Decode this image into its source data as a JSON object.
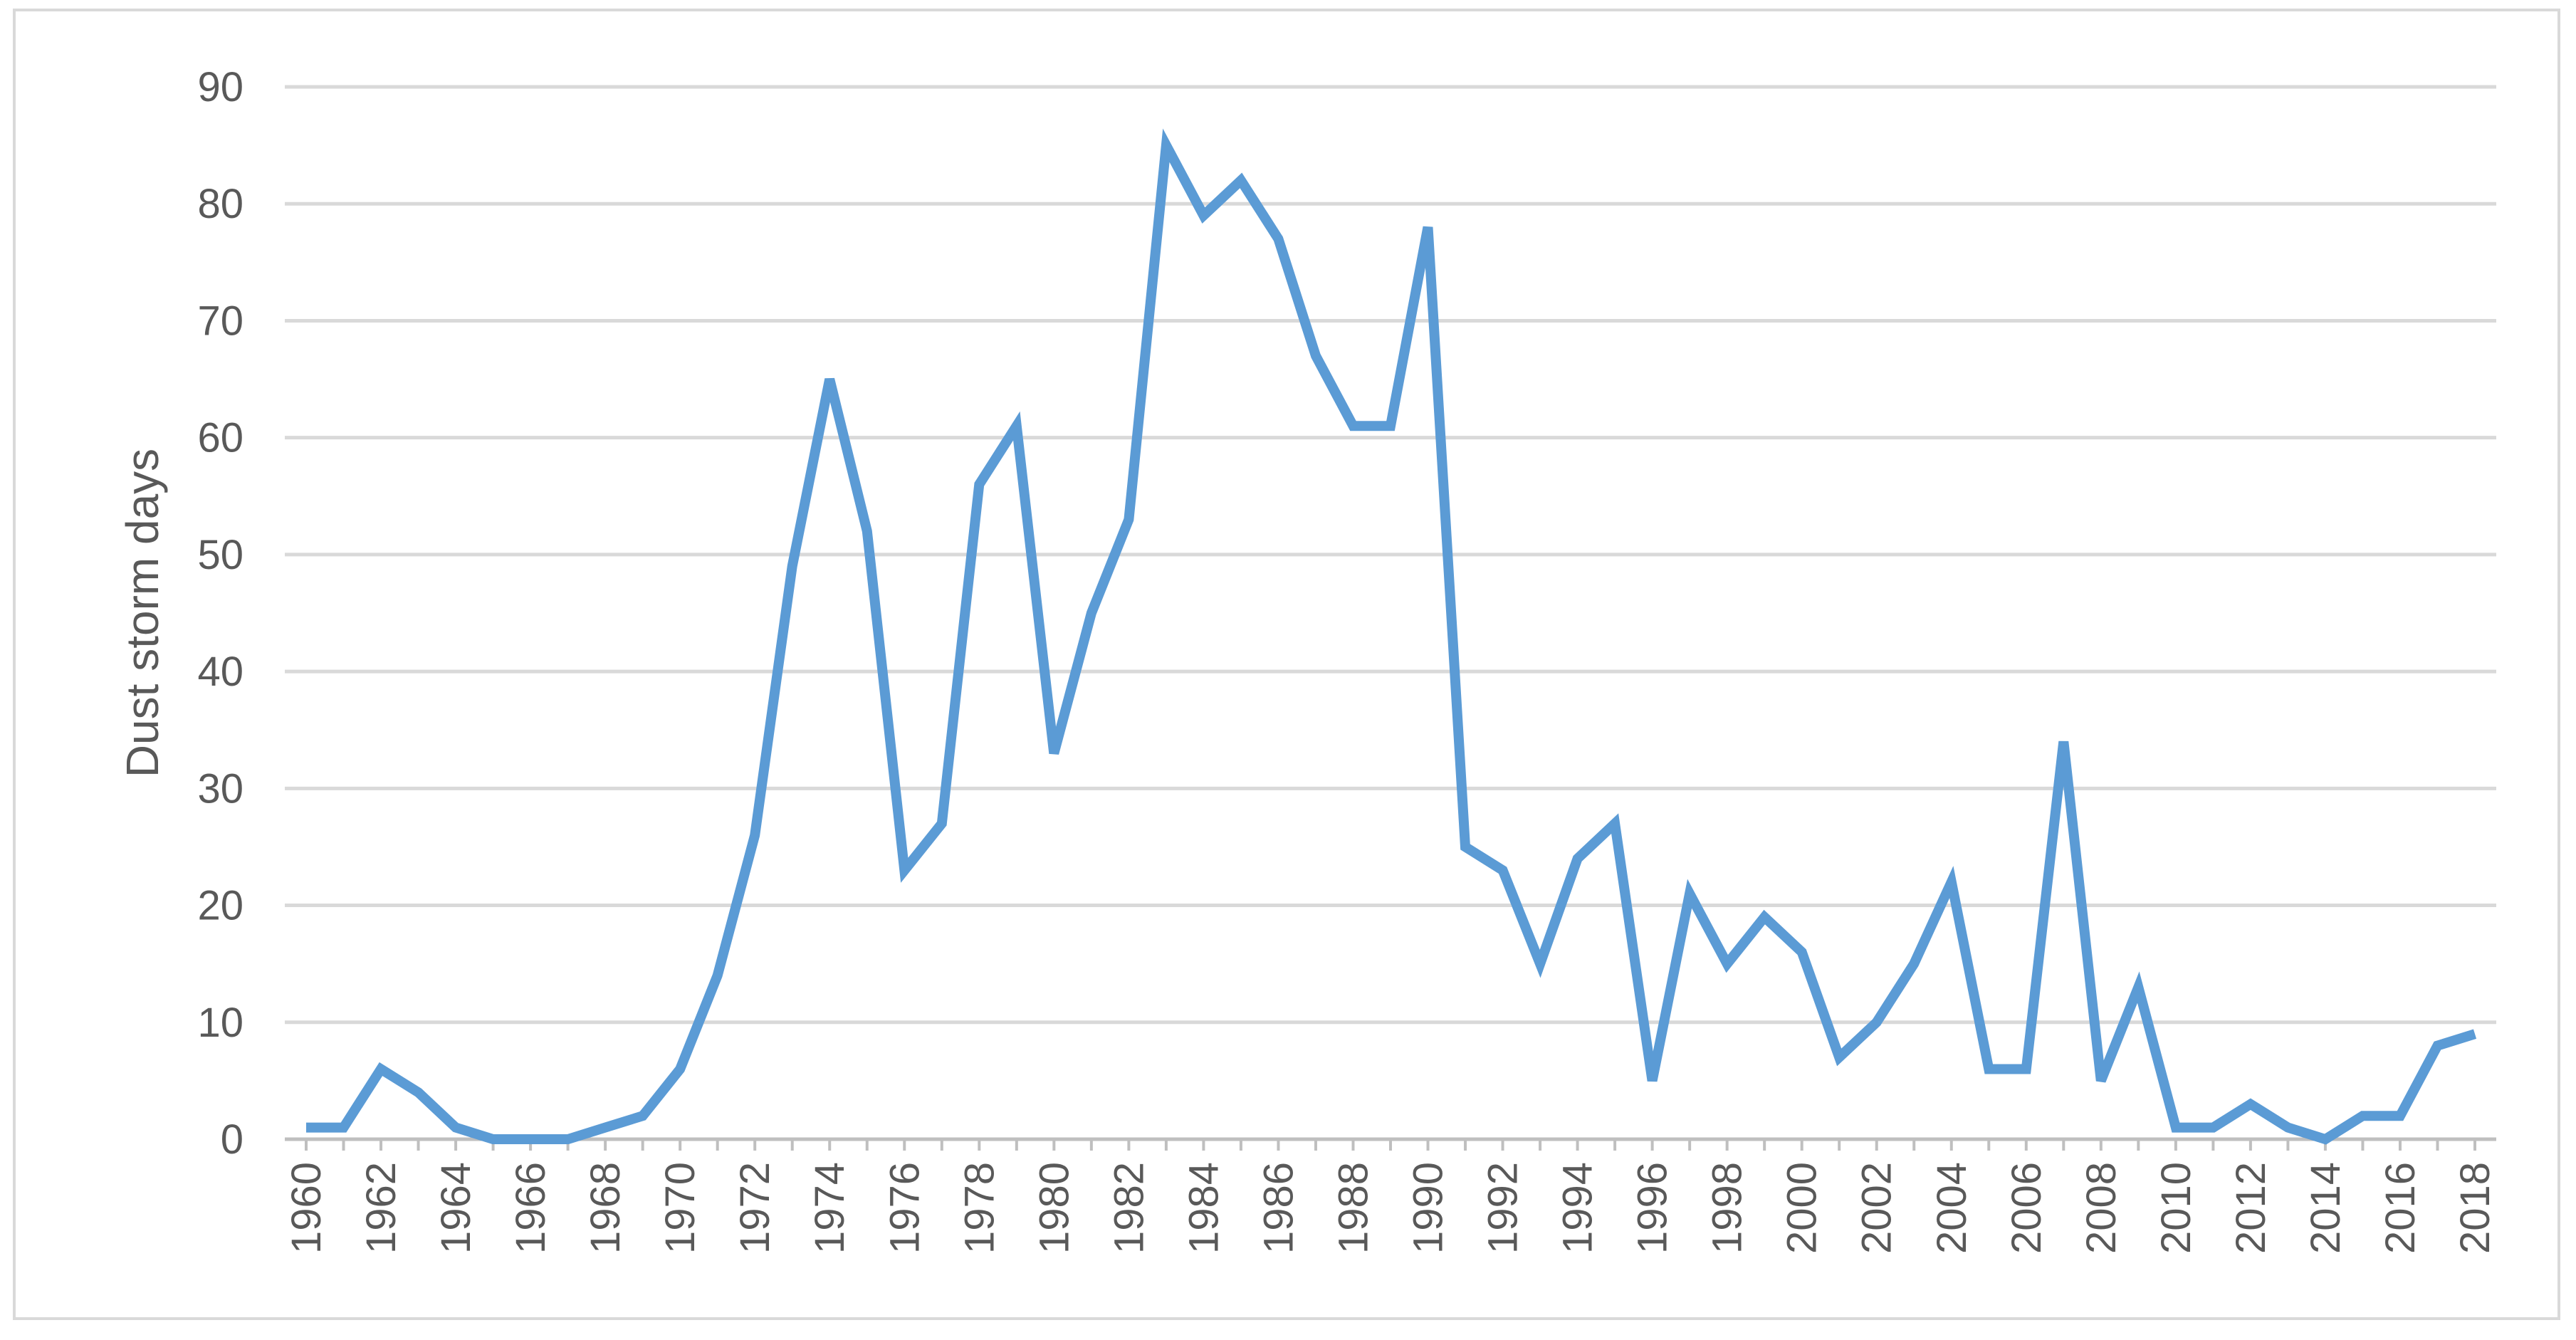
{
  "chart_data": {
    "type": "line",
    "title": "",
    "xlabel": "",
    "ylabel": "Dust storm days",
    "ylim": [
      0,
      90
    ],
    "yticks": [
      0,
      10,
      20,
      30,
      40,
      50,
      60,
      70,
      80,
      90
    ],
    "xlim": [
      1960,
      2018
    ],
    "xtick_labels": [
      "1960",
      "1962",
      "1964",
      "1966",
      "1968",
      "1970",
      "1972",
      "1974",
      "1976",
      "1978",
      "1980",
      "1982",
      "1984",
      "1986",
      "1988",
      "1990",
      "1992",
      "1994",
      "1996",
      "1998",
      "2000",
      "2002",
      "2004",
      "2006",
      "2008",
      "2010",
      "2012",
      "2014",
      "2016",
      "2018"
    ],
    "grid": true,
    "legend": "none",
    "line_color": "#5B9BD5",
    "grid_color": "#d9d9d9",
    "axis_color": "#bfbfbf",
    "text_color": "#595959",
    "series": [
      {
        "x": [
          1960,
          1961,
          1962,
          1963,
          1964,
          1965,
          1966,
          1967,
          1968,
          1969,
          1970,
          1971,
          1972,
          1973,
          1974,
          1975,
          1976,
          1977,
          1978,
          1979,
          1980,
          1981,
          1982,
          1983,
          1984,
          1985,
          1986,
          1987,
          1988,
          1989,
          1990,
          1991,
          1992,
          1993,
          1994,
          1995,
          1996,
          1997,
          1998,
          1999,
          2000,
          2001,
          2002,
          2003,
          2004,
          2005,
          2006,
          2007,
          2008,
          2009,
          2010,
          2011,
          2012,
          2013,
          2014,
          2015,
          2016,
          2017,
          2018
        ],
        "values": [
          1,
          1,
          6,
          4,
          1,
          0,
          0,
          0,
          1,
          2,
          6,
          14,
          26,
          49,
          65,
          52,
          23,
          27,
          56,
          61,
          33,
          45,
          53,
          85,
          79,
          82,
          77,
          67,
          61,
          61,
          78,
          25,
          23,
          15,
          24,
          27,
          5,
          21,
          15,
          19,
          16,
          7,
          10,
          15,
          22,
          6,
          6,
          34,
          5,
          13,
          1,
          1,
          3,
          1,
          0,
          2,
          2,
          8,
          9
        ]
      }
    ]
  }
}
